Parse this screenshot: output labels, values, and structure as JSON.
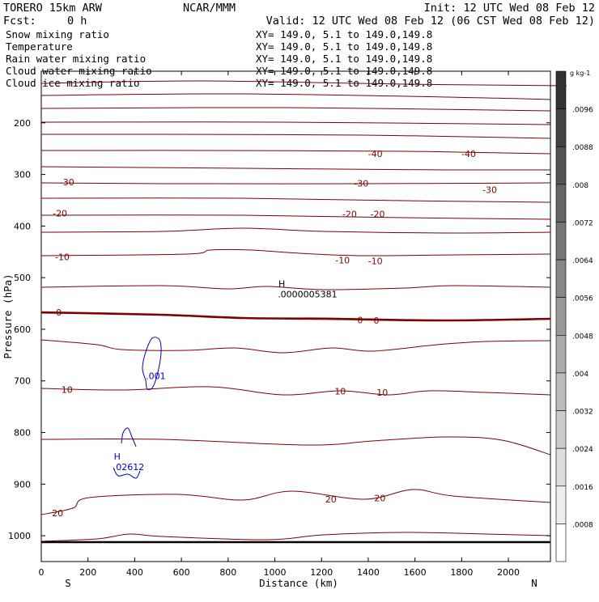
{
  "header": {
    "model": "TORERO  15km ARW",
    "center": "NCAR/MMM",
    "init": "Init: 12 UTC Wed 08 Feb 12",
    "fcst_label": "Fcst:",
    "fcst_value": "0 h",
    "valid": "Valid: 12 UTC Wed 08 Feb 12 (06 CST Wed 08 Feb 12)"
  },
  "fields": [
    {
      "label": "Snow mixing ratio",
      "xy": "XY= 149.0,  5.1 to 149.0,149.8",
      "color": "#000000"
    },
    {
      "label": "Temperature",
      "xy": "XY= 149.0,  5.1 to 149.0,149.8",
      "color": "#800000"
    },
    {
      "label": "Rain water mixing ratio",
      "xy": "XY= 149.0,  5.1 to 149.0,149.8",
      "color": "#e00000"
    },
    {
      "label": "Cloud water mixing ratio",
      "xy": "XY= 149.0,  5.1 to 149.0,149.8",
      "color": "#0000c0"
    },
    {
      "label": "Cloud ice mixing ratio",
      "xy": "XY= 149.0,  5.1 to 149.0,149.8",
      "color": "#000000"
    }
  ],
  "chart_data": {
    "type": "contour cross-section",
    "xlabel": "Distance (km)",
    "ylabel": "Pressure (hPa)",
    "xlim": [
      0,
      2180
    ],
    "ylim": [
      1050,
      100
    ],
    "x_ticks": [
      0,
      200,
      400,
      600,
      800,
      1000,
      1200,
      1400,
      1600,
      1800,
      2000
    ],
    "y_ticks": [
      200,
      300,
      400,
      500,
      600,
      700,
      800,
      900,
      1000
    ],
    "x_end_labels": {
      "left": "S",
      "right": "N"
    },
    "colorbar": {
      "unit": "g kg-1",
      "levels": [
        ".0008",
        ".0016",
        ".0024",
        ".0032",
        ".004",
        ".0048",
        ".0056",
        ".0064",
        ".0072",
        ".008",
        ".0088",
        ".0096"
      ]
    },
    "temperature_contour_labels": [
      {
        "text": "-40",
        "x": 1430,
        "p": 260
      },
      {
        "text": "-40",
        "x": 1830,
        "p": 260
      },
      {
        "text": "-30",
        "x": 110,
        "p": 315
      },
      {
        "text": "-30",
        "x": 1370,
        "p": 317
      },
      {
        "text": "-30",
        "x": 1920,
        "p": 330
      },
      {
        "text": "-20",
        "x": 80,
        "p": 375
      },
      {
        "text": "-20",
        "x": 1320,
        "p": 377
      },
      {
        "text": "-20",
        "x": 1440,
        "p": 377
      },
      {
        "text": "-10",
        "x": 90,
        "p": 460
      },
      {
        "text": "-10",
        "x": 1290,
        "p": 466
      },
      {
        "text": "-10",
        "x": 1430,
        "p": 468
      },
      {
        "text": "0",
        "x": 75,
        "p": 567
      },
      {
        "text": "0",
        "x": 1365,
        "p": 582
      },
      {
        "text": "0",
        "x": 1435,
        "p": 583
      },
      {
        "text": "10",
        "x": 110,
        "p": 717
      },
      {
        "text": "10",
        "x": 1280,
        "p": 720
      },
      {
        "text": "10",
        "x": 1460,
        "p": 722
      },
      {
        "text": "20",
        "x": 70,
        "p": 956
      },
      {
        "text": "20",
        "x": 1240,
        "p": 929
      },
      {
        "text": "20",
        "x": 1450,
        "p": 927
      }
    ],
    "highs": [
      {
        "symbol": "H",
        "value": ".0000005381",
        "x": 1030,
        "p": 530,
        "field": "Snow mixing ratio"
      },
      {
        "symbol": "H",
        "value": ".02612",
        "x": 325,
        "p": 865,
        "field": "Cloud water mixing ratio"
      }
    ],
    "cloud_water_contour_labels": [
      {
        "text": ".001",
        "x": 490,
        "p": 690
      }
    ]
  }
}
